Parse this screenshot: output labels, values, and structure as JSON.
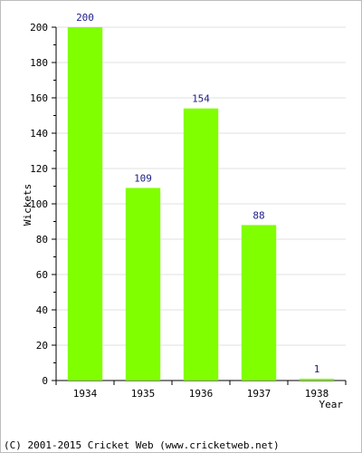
{
  "chart_data": {
    "type": "bar",
    "categories": [
      "1934",
      "1935",
      "1936",
      "1937",
      "1938"
    ],
    "values": [
      200,
      109,
      154,
      88,
      1
    ],
    "data_labels": [
      "200",
      "109",
      "154",
      "88",
      "1"
    ],
    "xlabel": "Year",
    "ylabel": "Wickets",
    "ylim": [
      0,
      200
    ],
    "yticks": [
      "0",
      "20",
      "40",
      "60",
      "80",
      "100",
      "120",
      "140",
      "160",
      "180",
      "200"
    ],
    "grid": true,
    "bar_color": "#80ff00",
    "label_color": "#1c1c8c"
  },
  "footer": {
    "text": "(C) 2001-2015 Cricket Web (www.cricketweb.net)"
  }
}
